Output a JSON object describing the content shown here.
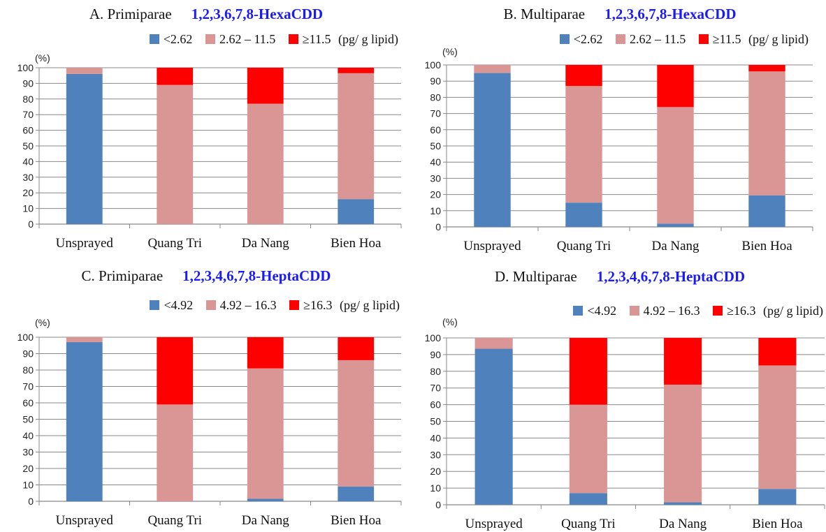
{
  "colors": {
    "low": "#4f81bd",
    "mid": "#d99694",
    "high": "#ff0000",
    "grid": "#888888",
    "axis": "#888888"
  },
  "chart_data": [
    {
      "type": "bar",
      "stacked": true,
      "label": "A. Primiparae",
      "compound": "1,2,3,6,7,8-HexaCDD",
      "unit_text": "(pg/ g lipid)",
      "ylabel": "(%)",
      "ylim": [
        0,
        100
      ],
      "yticks": [
        0,
        10,
        20,
        30,
        40,
        50,
        60,
        70,
        80,
        90,
        100
      ],
      "grid": true,
      "legend": "top-right",
      "categories": [
        "Unsprayed",
        "Quang Tri",
        "Da Nang",
        "Bien Hoa"
      ],
      "series": [
        {
          "name": "<2.62",
          "values": [
            96,
            0,
            0,
            16
          ]
        },
        {
          "name": "2.62 – 11.5",
          "values": [
            4,
            89,
            77,
            80.5
          ]
        },
        {
          "name": "≥11.5",
          "values": [
            0,
            11,
            23,
            3.5
          ]
        }
      ]
    },
    {
      "type": "bar",
      "stacked": true,
      "label": "B. Multiparae",
      "compound": "1,2,3,6,7,8-HexaCDD",
      "unit_text": "(pg/ g lipid)",
      "ylabel": "(%)",
      "ylim": [
        0,
        100
      ],
      "yticks": [
        0,
        10,
        20,
        30,
        40,
        50,
        60,
        70,
        80,
        90,
        100
      ],
      "grid": true,
      "legend": "top-right",
      "categories": [
        "Unsprayed",
        "Quang Tri",
        "Da Nang",
        "Bien Hoa"
      ],
      "series": [
        {
          "name": "<2.62",
          "values": [
            95,
            15,
            2,
            19.5
          ]
        },
        {
          "name": "2.62 – 11.5",
          "values": [
            5,
            72,
            72,
            76.5
          ]
        },
        {
          "name": "≥11.5",
          "values": [
            0,
            13,
            26,
            4
          ]
        }
      ]
    },
    {
      "type": "bar",
      "stacked": true,
      "label": "C. Primiparae",
      "compound": "1,2,3,4,6,7,8-HeptaCDD",
      "unit_text": "(pg/ g lipid)",
      "ylabel": "(%)",
      "ylim": [
        0,
        100
      ],
      "yticks": [
        0,
        10,
        20,
        30,
        40,
        50,
        60,
        70,
        80,
        90,
        100
      ],
      "grid": true,
      "legend": "top-right",
      "categories": [
        "Unsprayed",
        "Quang Tri",
        "Da Nang",
        "Bien Hoa"
      ],
      "series": [
        {
          "name": "<4.92",
          "values": [
            97,
            0,
            1.5,
            9
          ]
        },
        {
          "name": "4.92 – 16.3",
          "values": [
            3,
            59,
            79.5,
            77
          ]
        },
        {
          "name": "≥16.3",
          "values": [
            0,
            41,
            19,
            14
          ]
        }
      ]
    },
    {
      "type": "bar",
      "stacked": true,
      "label": "D. Multiparae",
      "compound": "1,2,3,4,6,7,8-HeptaCDD",
      "unit_text": "(pg/ g lipid)",
      "ylabel": "(%)",
      "ylim": [
        0,
        100
      ],
      "yticks": [
        0,
        10,
        20,
        30,
        40,
        50,
        60,
        70,
        80,
        90,
        100
      ],
      "grid": true,
      "legend": "top-right",
      "categories": [
        "Unsprayed",
        "Quang Tri",
        "Da Nang",
        "Bien Hoa"
      ],
      "series": [
        {
          "name": "<4.92",
          "values": [
            93.5,
            7,
            1.5,
            9.5
          ]
        },
        {
          "name": "4.92 – 16.3",
          "values": [
            6.5,
            53,
            70.5,
            74
          ]
        },
        {
          "name": "≥16.3",
          "values": [
            0,
            40,
            28,
            16.5
          ]
        }
      ]
    }
  ]
}
